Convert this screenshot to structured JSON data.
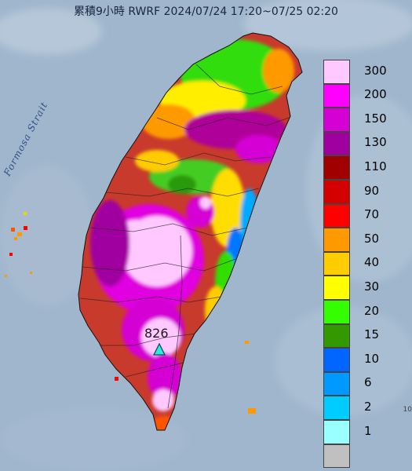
{
  "title": "累積9小時 RWRF 2024/07/24 17:20~07/25 02:20",
  "strait_label": "Formosa Strait",
  "max_value_label": "826",
  "max_marker_icon": "triangle-marker-icon",
  "corner_fragment": "10",
  "colors": {
    "sea": "#9fb6cc",
    "land_base": "#c84030"
  },
  "legend": {
    "items": [
      {
        "label": "300",
        "color": "#ffc8ff"
      },
      {
        "label": "200",
        "color": "#ff00ff"
      },
      {
        "label": "150",
        "color": "#d400d4"
      },
      {
        "label": "130",
        "color": "#a000a0"
      },
      {
        "label": "110",
        "color": "#a00000"
      },
      {
        "label": "90",
        "color": "#d40000"
      },
      {
        "label": "70",
        "color": "#ff0000"
      },
      {
        "label": "50",
        "color": "#ff9900"
      },
      {
        "label": "40",
        "color": "#ffcc00"
      },
      {
        "label": "30",
        "color": "#ffff00"
      },
      {
        "label": "20",
        "color": "#33ff00"
      },
      {
        "label": "15",
        "color": "#339900"
      },
      {
        "label": "10",
        "color": "#0066ff"
      },
      {
        "label": "6",
        "color": "#0099ff"
      },
      {
        "label": "2",
        "color": "#00ccff"
      },
      {
        "label": "1",
        "color": "#99ffff"
      },
      {
        "label": "",
        "color": "#c0c0c0"
      }
    ]
  }
}
